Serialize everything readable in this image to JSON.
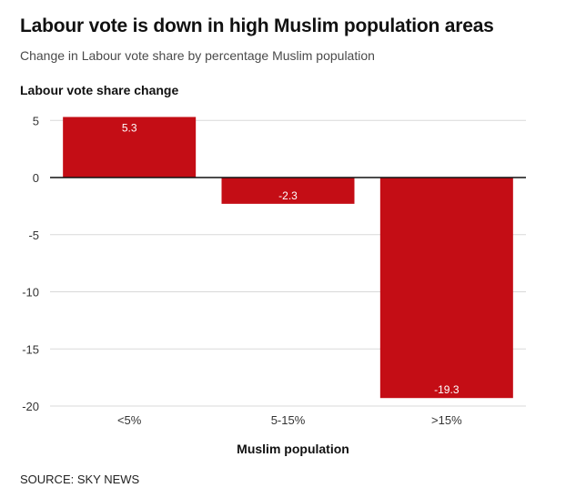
{
  "chart_data": {
    "type": "bar",
    "title": "Labour vote is down in high Muslim population areas",
    "subtitle": "Change in Labour vote share by percentage Muslim population",
    "ylabel": "Labour vote share change",
    "xlabel": "Muslim population",
    "categories": [
      "<5%",
      "5-15%",
      ">15%"
    ],
    "values": [
      5.3,
      -2.3,
      -19.3
    ],
    "data_labels": [
      "5.3",
      "-2.3",
      "-19.3"
    ],
    "yticks": [
      5,
      0,
      -5,
      -10,
      -15,
      -20
    ],
    "ytick_labels": [
      "5",
      "0",
      "-5",
      "-10",
      "-15",
      "-20"
    ],
    "ylim": [
      -20,
      5.3
    ],
    "grid": true,
    "bar_color": "#c40d15",
    "label_color": "#ffffff",
    "source": "SOURCE: SKY NEWS"
  }
}
